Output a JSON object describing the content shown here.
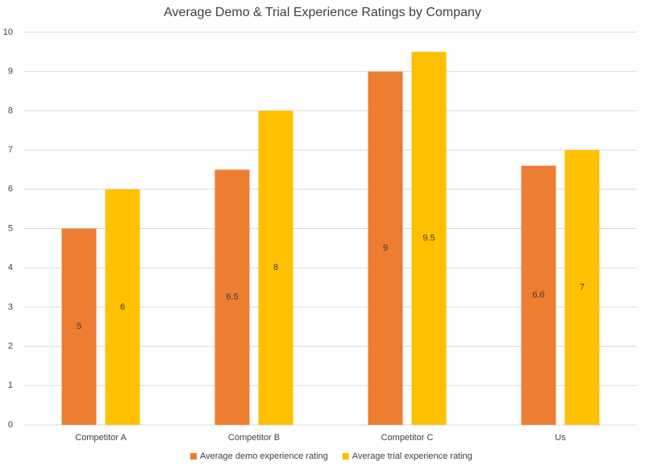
{
  "chart_data": {
    "type": "bar",
    "title": "Average Demo & Trial Experience Ratings by Company",
    "categories": [
      "Competitor A",
      "Competitor B",
      "Competitor C",
      "Us"
    ],
    "series": [
      {
        "name": "Average demo experience rating",
        "color": "#ed7d31",
        "values": [
          5,
          6.5,
          9,
          6.6
        ]
      },
      {
        "name": "Average trial experience rating",
        "color": "#ffc000",
        "values": [
          6,
          8,
          9.5,
          7
        ]
      }
    ],
    "ylim": [
      0,
      10
    ],
    "yticks": [
      0,
      1,
      2,
      3,
      4,
      5,
      6,
      7,
      8,
      9,
      10
    ],
    "grid": true,
    "legend": "bottom"
  }
}
